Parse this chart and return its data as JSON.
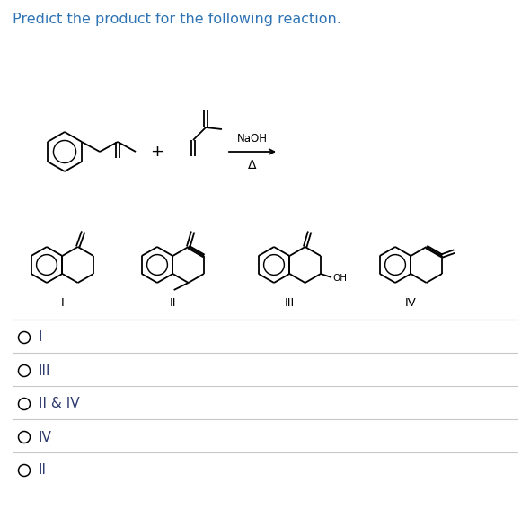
{
  "title": "Predict the product for the following reaction.",
  "title_color": "#2e74b5",
  "title_fontsize": 11.5,
  "background_color": "#ffffff",
  "options": [
    "I",
    "III",
    "II & IV",
    "IV",
    "II"
  ],
  "option_color": "#2e3b6e",
  "naoh_label": "NaOH",
  "delta_label": "Δ",
  "roman_labels": [
    "I",
    "II",
    "III",
    "IV"
  ],
  "lw": 1.3
}
